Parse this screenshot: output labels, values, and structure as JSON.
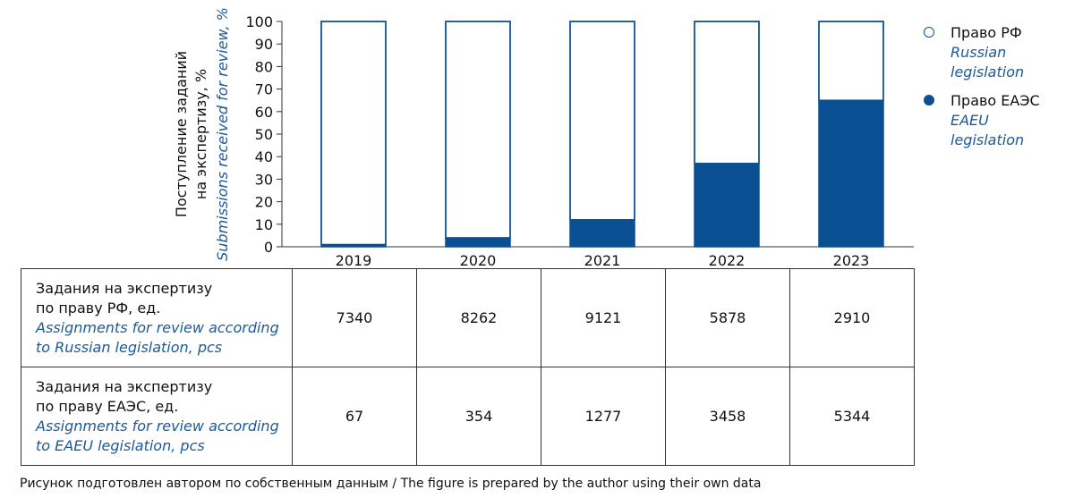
{
  "chart_data": {
    "type": "bar",
    "stacked": true,
    "normalized_percent": true,
    "categories": [
      "2019",
      "2020",
      "2021",
      "2022",
      "2023"
    ],
    "series": [
      {
        "name": "Право ЕАЭС / EAEU legislation",
        "values": [
          1,
          4,
          12,
          37,
          65
        ],
        "color": "#0b4f93"
      },
      {
        "name": "Право РФ / Russian legislation",
        "values": [
          99,
          96,
          88,
          63,
          35
        ],
        "color": "#ffffff"
      }
    ],
    "yticks": [
      "0",
      "10",
      "20",
      "30",
      "40",
      "50",
      "60",
      "70",
      "80",
      "90",
      "100"
    ],
    "ylim": [
      0,
      100
    ],
    "ylabel_ru_line1": "Поступление заданий",
    "ylabel_ru_line2": "на экспертизу, %",
    "ylabel_en": "Submissions received for review, %",
    "grid": false
  },
  "legend": {
    "items": [
      {
        "ru": "Право РФ",
        "en_line1": "Russian",
        "en_line2": "legislation",
        "fill": "#ffffff",
        "stroke": "#0b4f93"
      },
      {
        "ru": "Право ЕАЭС",
        "en_line1": "EAEU",
        "en_line2": "legislation",
        "fill": "#0b4f93",
        "stroke": "#0b4f93"
      }
    ]
  },
  "table": {
    "rows": [
      {
        "ru_line1": "Задания на экспертизу",
        "ru_line2": "по праву РФ, ед.",
        "en_line1": "Assignments for review according",
        "en_line2": "to Russian legislation, pcs",
        "values": [
          "7340",
          "8262",
          "9121",
          "5878",
          "2910"
        ]
      },
      {
        "ru_line1": "Задания на экспертизу",
        "ru_line2": "по праву ЕАЭС, ед.",
        "en_line1": "Assignments for review according",
        "en_line2": "to EAEU legislation, pcs",
        "values": [
          "67",
          "354",
          "1277",
          "3458",
          "5344"
        ]
      }
    ]
  },
  "footnote": "Рисунок подготовлен автором по собственным данным / The figure is prepared by the author using their own data"
}
